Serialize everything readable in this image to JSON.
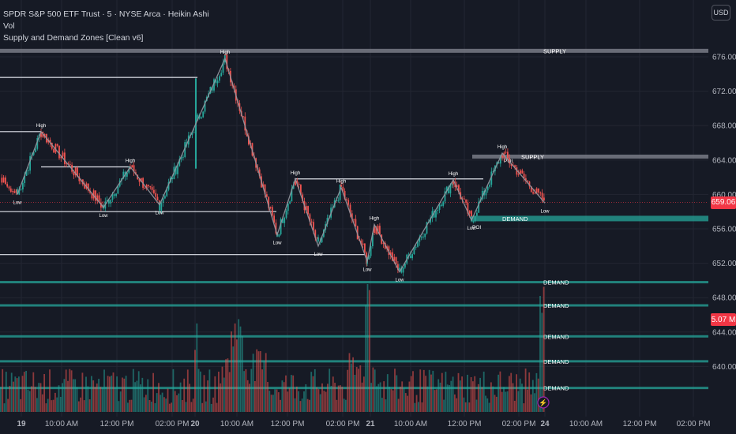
{
  "legend": {
    "title": "SPDR S&P 500 ETF Trust · 5 · NYSE Arca · Heikin Ashi",
    "vol": "Vol",
    "indicator": "Supply and Demand Zones [Clean v6]"
  },
  "currency": "USD",
  "last_price": "659.06",
  "volume_badge": "5.07 M",
  "colors": {
    "background": "#161a25",
    "up": "#26a69a",
    "down": "#ef5350",
    "supply_zone": "#787b86",
    "demand_zone": "#26a69a",
    "price_badge": "#f23645"
  },
  "chart_data": {
    "type": "candlestick",
    "title": "SPDR S&P 500 ETF Trust · 5 · NYSE Arca · Heikin Ashi",
    "y_ticks": [
      "676.00",
      "672.00",
      "668.00",
      "664.00",
      "660.00",
      "656.00",
      "652.00",
      "648.00",
      "644.00",
      "640.00"
    ],
    "y_tick_values": [
      676,
      672,
      668,
      664,
      660,
      656,
      652,
      648,
      644,
      640
    ],
    "x_ticks": [
      "19",
      "10:00 AM",
      "12:00 PM",
      "02:00 PM",
      "20",
      "10:00 AM",
      "12:00 PM",
      "02:00 PM",
      "21",
      "10:00 AM",
      "12:00 PM",
      "02:00 PM",
      "24",
      "10:00 AM",
      "12:00 PM",
      "02:00 PM"
    ],
    "ylim": [
      637,
      677.5
    ],
    "swing_points": [
      {
        "label": "Low",
        "price": 660.0
      },
      {
        "label": "High",
        "price": 667.3
      },
      {
        "label": "Low",
        "price": 658.5
      },
      {
        "label": "High",
        "price": 663.2
      },
      {
        "label": "Low",
        "price": 658.8
      },
      {
        "label": "High",
        "price": 675.8
      },
      {
        "label": "Low",
        "price": 655.3
      },
      {
        "label": "High",
        "price": 661.8
      },
      {
        "label": "Low",
        "price": 654.0
      },
      {
        "label": "High",
        "price": 660.8
      },
      {
        "label": "Low",
        "price": 652.2
      },
      {
        "label": "High",
        "price": 656.5
      },
      {
        "label": "Low",
        "price": 651.0
      },
      {
        "label": "High",
        "price": 661.7
      },
      {
        "label": "Low",
        "price": 657.0
      },
      {
        "label": "High",
        "price": 664.8
      },
      {
        "label": "Low",
        "price": 659.0
      }
    ],
    "zones": [
      {
        "label": "SUPPLY",
        "price": 676.7
      },
      {
        "label": "SUPPLY",
        "price": 664.4
      },
      {
        "label": "DEMAND",
        "price": 657.2
      },
      {
        "label": "DEMAND",
        "price": 649.8
      },
      {
        "label": "DEMAND",
        "price": 647.1
      },
      {
        "label": "DEMAND",
        "price": 643.5
      },
      {
        "label": "DEMAND",
        "price": 640.6
      },
      {
        "label": "DEMAND",
        "price": 637.5
      }
    ],
    "zone_markers": [
      "POI",
      "POI"
    ],
    "level_lines": [
      673.6,
      667.3,
      663.2,
      661.8,
      658.0,
      653.0
    ],
    "last_price": 659.06
  }
}
